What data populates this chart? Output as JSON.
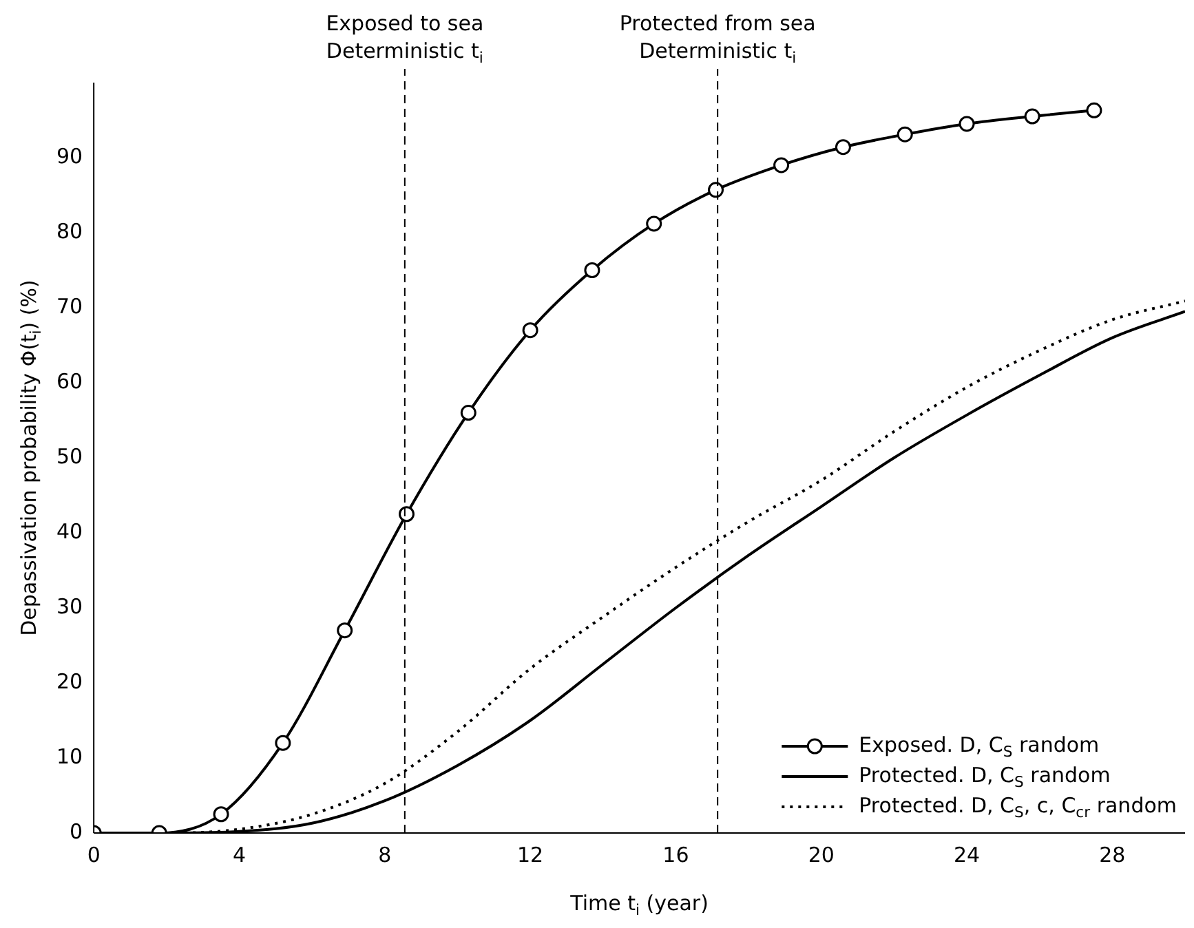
{
  "chart_data": {
    "type": "line",
    "xlabel": "Time t$_{i}$ (year)",
    "ylabel": "Depassivation probability Φ(t$_{i}$) (%)",
    "xlim": [
      0,
      30
    ],
    "xticks": [
      0,
      4,
      8,
      12,
      16,
      20,
      24,
      28
    ],
    "ylim": [
      0,
      100
    ],
    "yticks": [
      0,
      10,
      20,
      30,
      40,
      50,
      60,
      70,
      80,
      90
    ],
    "grid": false,
    "legend": "bottom right",
    "ref_lines": [
      {
        "axis": "x",
        "value": 8.55,
        "label": "Exposed to sea\nDeterministic t$_{i}$",
        "line_style": "dashed",
        "color": "#000000"
      },
      {
        "axis": "x",
        "value": 17.15,
        "label": "Protected from sea\nDeterministic t$_{i}$",
        "line_style": "dashed",
        "color": "#000000"
      }
    ],
    "series": [
      {
        "name": "Exposed. D, C$_{S}$ random",
        "color": "#000000",
        "marker": "circle",
        "line_style": "solid",
        "x": [
          0,
          1.8,
          3.5,
          5.2,
          6.9,
          8.6,
          10.3,
          12,
          13.7,
          15.4,
          17.1,
          18.9,
          20.6,
          22.3,
          24,
          25.8,
          27.5
        ],
        "values": [
          0,
          0,
          2.5,
          12,
          27,
          42.5,
          56,
          67,
          75,
          81.2,
          85.7,
          89,
          91.4,
          93.1,
          94.5,
          95.5,
          96.3
        ]
      },
      {
        "name": "Protected. D, C$_{S}$ random",
        "color": "#000000",
        "marker": "none",
        "line_style": "solid",
        "x": [
          0,
          2,
          4,
          6,
          8,
          10,
          12,
          14,
          16,
          18,
          20,
          22,
          24,
          26,
          28,
          30
        ],
        "values": [
          0,
          0,
          0.2,
          1.3,
          4.3,
          9,
          15,
          22.5,
          30,
          37,
          43.5,
          50,
          55.7,
          61,
          66,
          69.5
        ]
      },
      {
        "name": "Protected. D, C$_{S}$, c, C$_{cr}$ random",
        "color": "#000000",
        "marker": "none",
        "line_style": "dotted",
        "x": [
          0,
          2,
          4,
          6,
          8,
          10,
          12,
          14,
          16,
          18,
          20,
          22,
          24,
          26,
          28,
          30
        ],
        "values": [
          0,
          0,
          0.5,
          2.5,
          6.6,
          13.5,
          21.9,
          28.8,
          35.4,
          41.5,
          47,
          53.5,
          59.4,
          64.3,
          68.4,
          70.9
        ]
      }
    ]
  }
}
